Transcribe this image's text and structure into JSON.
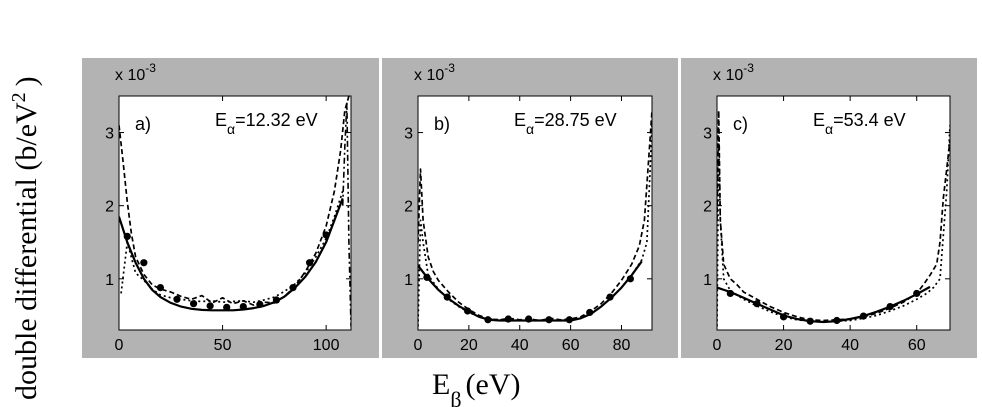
{
  "figure": {
    "ylabel_main": "double differential (b/eV",
    "ylabel_sup": "2",
    "ylabel_close": ")",
    "xlabel_main": "E",
    "xlabel_sub": "β",
    "xlabel_unit": "(eV)"
  },
  "chart_data": [
    {
      "type": "line",
      "panel_label": "a)",
      "energy_label": {
        "main": "E",
        "sub": "α",
        "value": "=12.32 eV"
      },
      "multiplier": "x 10",
      "multiplier_exp": "-3",
      "xlim": [
        0,
        112
      ],
      "ylim": [
        0.3,
        3.5
      ],
      "xticks": [
        0,
        50,
        100
      ],
      "yticks": [
        1,
        2,
        3
      ],
      "series": [
        {
          "style": "solid",
          "x": [
            0,
            4,
            8,
            12,
            16,
            20,
            25,
            30,
            35,
            40,
            45,
            50,
            55,
            60,
            65,
            70,
            75,
            80,
            85,
            90,
            95,
            100,
            104,
            108
          ],
          "y": [
            1.85,
            1.5,
            1.22,
            1.0,
            0.85,
            0.75,
            0.67,
            0.62,
            0.59,
            0.575,
            0.57,
            0.57,
            0.57,
            0.58,
            0.6,
            0.63,
            0.68,
            0.76,
            0.88,
            1.03,
            1.23,
            1.5,
            1.8,
            2.1
          ]
        },
        {
          "style": "dashed",
          "x": [
            0,
            2,
            4,
            6,
            8,
            12,
            16,
            20,
            25,
            30,
            35,
            40,
            45,
            50,
            55,
            60,
            65,
            70,
            75,
            80,
            85,
            90,
            95,
            100,
            104,
            107,
            109,
            111,
            112
          ],
          "y": [
            3.1,
            2.6,
            2.05,
            1.62,
            1.3,
            1.06,
            0.92,
            0.86,
            0.82,
            0.76,
            0.72,
            0.77,
            0.67,
            0.74,
            0.66,
            0.7,
            0.64,
            0.68,
            0.67,
            0.76,
            0.9,
            1.1,
            1.35,
            1.72,
            2.2,
            2.75,
            3.3,
            3.5,
            3.5
          ]
        },
        {
          "style": "dotted",
          "x": [
            1,
            4,
            8,
            12,
            16,
            20,
            25,
            30,
            35,
            40,
            45,
            50,
            55,
            60,
            65,
            70,
            75,
            80,
            85,
            90,
            95,
            100,
            104,
            108
          ],
          "y": [
            0.8,
            1.5,
            1.08,
            0.98,
            0.86,
            0.78,
            0.74,
            0.72,
            0.7,
            0.69,
            0.7,
            0.68,
            0.69,
            0.7,
            0.68,
            0.71,
            0.75,
            0.83,
            0.93,
            1.08,
            1.3,
            1.55,
            1.85,
            2.2
          ]
        },
        {
          "style": "dashdot",
          "x": [
            108,
            109,
            110,
            111,
            112
          ],
          "y": [
            2.0,
            2.8,
            3.4,
            1.5,
            0.35
          ]
        },
        {
          "style": "markers",
          "x": [
            4,
            12,
            20,
            28,
            36,
            44,
            52,
            60,
            68,
            76,
            84,
            92,
            100
          ],
          "y": [
            1.58,
            1.22,
            0.88,
            0.72,
            0.66,
            0.63,
            0.61,
            0.62,
            0.65,
            0.71,
            0.88,
            1.22,
            1.6
          ]
        }
      ]
    },
    {
      "type": "line",
      "panel_label": "b)",
      "energy_label": {
        "main": "E",
        "sub": "α",
        "value": "=28.75 eV"
      },
      "multiplier": "x 10",
      "multiplier_exp": "-3",
      "xlim": [
        0,
        92
      ],
      "ylim": [
        0.3,
        3.5
      ],
      "xticks": [
        0,
        20,
        40,
        60,
        80
      ],
      "yticks": [
        1,
        2,
        3
      ],
      "series": [
        {
          "style": "solid",
          "x": [
            0,
            4,
            8,
            12,
            16,
            20,
            24,
            28,
            32,
            36,
            40,
            44,
            48,
            52,
            56,
            60,
            64,
            68,
            72,
            76,
            80,
            84,
            88
          ],
          "y": [
            1.18,
            1.0,
            0.85,
            0.73,
            0.63,
            0.55,
            0.48,
            0.44,
            0.43,
            0.43,
            0.43,
            0.43,
            0.43,
            0.43,
            0.43,
            0.43,
            0.46,
            0.52,
            0.62,
            0.74,
            0.88,
            1.05,
            1.24
          ]
        },
        {
          "style": "dashed",
          "x": [
            0,
            1,
            2,
            4,
            6,
            8,
            12,
            16,
            20,
            24,
            28,
            32,
            36,
            40,
            44,
            48,
            52,
            56,
            60,
            64,
            68,
            72,
            76,
            80,
            84,
            87,
            89,
            91,
            92
          ],
          "y": [
            1.5,
            2.5,
            1.8,
            1.3,
            1.1,
            0.98,
            0.82,
            0.68,
            0.58,
            0.5,
            0.45,
            0.44,
            0.46,
            0.44,
            0.45,
            0.43,
            0.46,
            0.44,
            0.45,
            0.48,
            0.56,
            0.66,
            0.8,
            0.98,
            1.2,
            1.45,
            1.8,
            2.8,
            3.3
          ]
        },
        {
          "style": "dotted",
          "x": [
            0,
            1,
            2,
            4,
            8,
            12,
            16,
            20,
            24,
            28,
            32,
            36,
            40,
            44,
            48,
            52,
            56,
            60,
            64,
            68,
            72,
            76,
            80,
            84,
            88,
            90,
            91,
            92
          ],
          "y": [
            0.35,
            1.8,
            1.5,
            1.05,
            0.86,
            0.72,
            0.62,
            0.54,
            0.48,
            0.45,
            0.44,
            0.44,
            0.43,
            0.43,
            0.43,
            0.43,
            0.43,
            0.44,
            0.46,
            0.52,
            0.62,
            0.74,
            0.88,
            1.05,
            1.26,
            1.5,
            2.3,
            3.1
          ]
        },
        {
          "style": "markers",
          "x": [
            3.5,
            11.5,
            19.5,
            27.5,
            35.5,
            43.5,
            51.5,
            59.5,
            67.5,
            75.5,
            83.5
          ],
          "y": [
            1.02,
            0.75,
            0.56,
            0.44,
            0.45,
            0.45,
            0.44,
            0.44,
            0.54,
            0.75,
            1.0
          ]
        }
      ]
    },
    {
      "type": "line",
      "panel_label": "c)",
      "energy_label": {
        "main": "E",
        "sub": "α",
        "value": "=53.4 eV"
      },
      "multiplier": "x 10",
      "multiplier_exp": "-3",
      "xlim": [
        0,
        70
      ],
      "ylim": [
        0.3,
        3.5
      ],
      "xticks": [
        0,
        20,
        40,
        60
      ],
      "yticks": [
        1,
        2,
        3
      ],
      "series": [
        {
          "style": "solid",
          "x": [
            0,
            4,
            8,
            12,
            16,
            20,
            24,
            28,
            32,
            36,
            40,
            44,
            48,
            52,
            56,
            60,
            64
          ],
          "y": [
            0.88,
            0.82,
            0.74,
            0.66,
            0.58,
            0.5,
            0.45,
            0.42,
            0.41,
            0.42,
            0.45,
            0.49,
            0.55,
            0.62,
            0.7,
            0.79,
            0.89
          ]
        },
        {
          "style": "dashed",
          "x": [
            0,
            0.5,
            1,
            2,
            4,
            6,
            8,
            12,
            16,
            20,
            24,
            28,
            32,
            36,
            40,
            44,
            48,
            52,
            56,
            60,
            62,
            64,
            66,
            67,
            68,
            69,
            70
          ],
          "y": [
            1.8,
            3.3,
            1.8,
            1.2,
            1.0,
            0.92,
            0.82,
            0.72,
            0.62,
            0.54,
            0.48,
            0.44,
            0.43,
            0.44,
            0.45,
            0.48,
            0.53,
            0.6,
            0.68,
            0.8,
            0.92,
            1.05,
            1.2,
            1.5,
            2.1,
            2.5,
            2.9
          ]
        },
        {
          "style": "dotted",
          "x": [
            0,
            0.5,
            1,
            2,
            4,
            8,
            12,
            16,
            20,
            24,
            28,
            32,
            36,
            40,
            44,
            48,
            52,
            56,
            60,
            63,
            65,
            67,
            69,
            70
          ],
          "y": [
            0.35,
            2.9,
            1.8,
            1.0,
            0.84,
            0.72,
            0.63,
            0.55,
            0.48,
            0.44,
            0.42,
            0.41,
            0.42,
            0.43,
            0.46,
            0.5,
            0.56,
            0.63,
            0.72,
            0.8,
            0.88,
            1.0,
            2.2,
            3.1
          ]
        },
        {
          "style": "markers",
          "x": [
            4,
            12,
            20,
            28,
            36,
            44,
            52,
            60
          ],
          "y": [
            0.8,
            0.66,
            0.48,
            0.42,
            0.43,
            0.49,
            0.62,
            0.8
          ]
        }
      ]
    }
  ]
}
